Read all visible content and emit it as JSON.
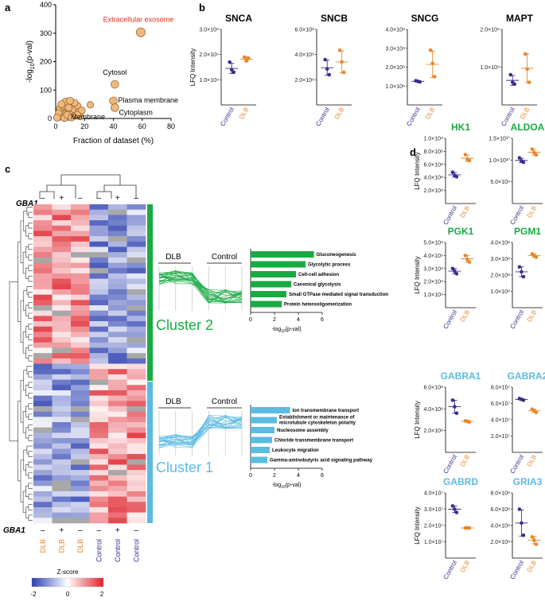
{
  "colors": {
    "control": "#3b2f8f",
    "dlb": "#e8872a",
    "green": "#1aaa43",
    "blue": "#5bbbe0",
    "red": "#e02b20",
    "bubble": "#f0b97a",
    "bubble_edge": "#8a5a2a"
  },
  "panel_labels": {
    "a": "a",
    "b": "b",
    "c": "c",
    "d": "d"
  },
  "axis": {
    "lfq": "LFQ Intensity",
    "control": "Control",
    "dlb": "DLB",
    "neglog_pre": "-log",
    "neglog_sub": "10",
    "neglog_post": "(p-val)"
  },
  "chart_data": [
    {
      "id": "a",
      "type": "scatter",
      "xlabel": "Fraction of dataset (%)",
      "ylabel": "-log10(p-val)",
      "xlim": [
        0,
        80
      ],
      "ylim": [
        0,
        400
      ],
      "xticks": [
        "0",
        "20",
        "40",
        "60",
        "80"
      ],
      "yticks": [
        "0",
        "100",
        "200",
        "300",
        "400"
      ],
      "labeled_points": [
        {
          "x": 59,
          "y": 303,
          "r": 8,
          "label": "Extracellular exosome",
          "highlight": true
        },
        {
          "x": 41,
          "y": 120,
          "r": 7,
          "label": "Cytosol"
        },
        {
          "x": 40,
          "y": 62,
          "r": 7,
          "label": "Plasma membrane"
        },
        {
          "x": 41,
          "y": 38,
          "r": 7,
          "label": "Cytoplasm"
        },
        {
          "x": 24,
          "y": 48,
          "r": 6,
          "label": "Membrane"
        }
      ],
      "cluster_points": [
        {
          "x": 2,
          "y": 5
        },
        {
          "x": 3,
          "y": 12
        },
        {
          "x": 4,
          "y": 22
        },
        {
          "x": 5,
          "y": 8
        },
        {
          "x": 6,
          "y": 30
        },
        {
          "x": 7,
          "y": 15
        },
        {
          "x": 8,
          "y": 40
        },
        {
          "x": 9,
          "y": 6
        },
        {
          "x": 10,
          "y": 25
        },
        {
          "x": 11,
          "y": 52
        },
        {
          "x": 12,
          "y": 18
        },
        {
          "x": 13,
          "y": 32
        },
        {
          "x": 14,
          "y": 10
        },
        {
          "x": 15,
          "y": 45
        },
        {
          "x": 16,
          "y": 22
        },
        {
          "x": 17,
          "y": 8
        },
        {
          "x": 18,
          "y": 28
        },
        {
          "x": 3,
          "y": 35
        },
        {
          "x": 5,
          "y": 45
        },
        {
          "x": 7,
          "y": 60
        },
        {
          "x": 9,
          "y": 38
        },
        {
          "x": 2,
          "y": 18
        },
        {
          "x": 1,
          "y": 3
        },
        {
          "x": 6,
          "y": 2
        },
        {
          "x": 8,
          "y": 12
        },
        {
          "x": 11,
          "y": 4
        },
        {
          "x": 13,
          "y": 55
        },
        {
          "x": 4,
          "y": 50
        },
        {
          "x": 10,
          "y": 62
        },
        {
          "x": 15,
          "y": 12
        }
      ]
    },
    {
      "id": "b-snca",
      "type": "scatter",
      "title": "SNCA",
      "yticks": [
        "1.0×10⁹",
        "2.0×10⁹",
        "3.0×10⁹"
      ],
      "ylim": [
        0,
        3
      ],
      "control": [
        1.7,
        1.4,
        1.3
      ],
      "dlb": [
        1.9,
        1.75,
        1.85
      ],
      "control_mean": 1.45,
      "control_sd": 0.2,
      "dlb_mean": 1.82,
      "dlb_sd": 0.1
    },
    {
      "id": "b-sncb",
      "type": "scatter",
      "title": "SNCB",
      "yticks": [
        "2.0×10⁸",
        "4.0×10⁸",
        "6.0×10⁸"
      ],
      "ylim": [
        0,
        6.5
      ],
      "control": [
        3.9,
        3.1,
        2.6
      ],
      "dlb": [
        4.7,
        3.7,
        2.8
      ],
      "control_mean": 3.2,
      "control_sd": 0.65,
      "dlb_mean": 3.7,
      "dlb_sd": 0.95
    },
    {
      "id": "b-sncg",
      "type": "scatter",
      "title": "SNCG",
      "yticks": [
        "1.0×10⁸",
        "2.0×10⁸",
        "3.0×10⁸",
        "4.0×10⁸"
      ],
      "ylim": [
        0,
        4
      ],
      "control": [
        1.28,
        1.25,
        1.22
      ],
      "dlb": [
        2.9,
        2.2,
        1.5
      ],
      "control_mean": 1.25,
      "control_sd": 0.03,
      "dlb_mean": 2.15,
      "dlb_sd": 0.7
    },
    {
      "id": "b-mapt",
      "type": "scatter",
      "title": "MAPT",
      "yticks": [
        "1.0×10⁹",
        "2.0×10⁹"
      ],
      "ylim": [
        0,
        2
      ],
      "control": [
        0.8,
        0.6,
        0.55
      ],
      "dlb": [
        1.35,
        0.95,
        0.6
      ],
      "control_mean": 0.65,
      "control_sd": 0.13,
      "dlb_mean": 0.97,
      "dlb_sd": 0.38
    },
    {
      "id": "d-hk1",
      "type": "scatter",
      "title": "HK1",
      "title_color": "green",
      "ylim": [
        0,
        10
      ],
      "yticks": [
        "2.0×10⁸",
        "4.0×10⁸",
        "6.0×10⁸",
        "8.0×10⁸",
        "1.0×10⁹"
      ],
      "control": [
        4.8,
        4.3,
        4.1
      ],
      "dlb": [
        7.5,
        6.8,
        6.6
      ],
      "control_mean": 4.4,
      "control_sd": 0.35,
      "dlb_mean": 6.95,
      "dlb_sd": 0.5
    },
    {
      "id": "d-aldoa",
      "type": "scatter",
      "title": "ALDOA",
      "title_color": "green",
      "ylim": [
        0,
        15
      ],
      "yticks": [
        "5.0×10⁹",
        "1.0×10¹⁰",
        "1.5×10¹⁰"
      ],
      "control": [
        10.5,
        9.8,
        9.5
      ],
      "dlb": [
        12.5,
        11.7,
        11.2
      ],
      "control_mean": 9.9,
      "control_sd": 0.5,
      "dlb_mean": 11.8,
      "dlb_sd": 0.65
    },
    {
      "id": "d-pgk1",
      "type": "scatter",
      "title": "PGK1",
      "title_color": "green",
      "ylim": [
        0,
        5
      ],
      "yticks": [
        "1.0×10⁹",
        "2.0×10⁹",
        "3.0×10⁹",
        "4.0×10⁹",
        "5.0×10⁹"
      ],
      "control": [
        3.0,
        2.8,
        2.6
      ],
      "dlb": [
        4.0,
        3.7,
        3.5
      ],
      "control_mean": 2.8,
      "control_sd": 0.2,
      "dlb_mean": 3.75,
      "dlb_sd": 0.25
    },
    {
      "id": "d-pgm1",
      "type": "scatter",
      "title": "PGM1",
      "title_color": "green",
      "ylim": [
        0,
        4
      ],
      "yticks": [
        "1.0×10⁸",
        "2.0×10⁸",
        "3.0×10⁸",
        "4.0×10⁸"
      ],
      "control": [
        2.5,
        2.2,
        1.9
      ],
      "dlb": [
        3.3,
        3.2,
        3.1
      ],
      "control_mean": 2.2,
      "control_sd": 0.3,
      "dlb_mean": 3.2,
      "dlb_sd": 0.1
    },
    {
      "id": "d-gabra1",
      "type": "scatter",
      "title": "GABRA1",
      "title_color": "blue",
      "ylim": [
        0,
        6
      ],
      "yticks": [
        "2.0×10⁸",
        "4.0×10⁸",
        "6.0×10⁸"
      ],
      "control": [
        4.8,
        4.2,
        3.6
      ],
      "dlb": [
        2.9,
        2.85,
        2.8
      ],
      "control_mean": 4.2,
      "control_sd": 0.6,
      "dlb_mean": 2.85,
      "dlb_sd": 0.05
    },
    {
      "id": "d-gabra2",
      "type": "scatter",
      "title": "GABRA2",
      "title_color": "blue",
      "ylim": [
        0,
        8
      ],
      "yticks": [
        "2.0×10⁷",
        "4.0×10⁷",
        "6.0×10⁷",
        "8.0×10⁷"
      ],
      "control": [
        6.6,
        6.5,
        6.4
      ],
      "dlb": [
        5.3,
        5.1,
        4.9
      ],
      "control_mean": 6.5,
      "control_sd": 0.1,
      "dlb_mean": 5.1,
      "dlb_sd": 0.2
    },
    {
      "id": "d-gabrd",
      "type": "scatter",
      "title": "GABRD",
      "title_color": "blue",
      "ylim": [
        0,
        4
      ],
      "yticks": [
        "1.0×10⁷",
        "2.0×10⁷",
        "3.0×10⁷",
        "4.0×10⁷"
      ],
      "control": [
        3.2,
        3.0,
        2.8
      ],
      "dlb": [
        1.85,
        1.85,
        1.85
      ],
      "control_mean": 3.0,
      "control_sd": 0.2,
      "dlb_mean": 1.85,
      "dlb_sd": 0.02
    },
    {
      "id": "d-gria3",
      "type": "scatter",
      "title": "GRIA3",
      "title_color": "blue",
      "ylim": [
        0,
        8
      ],
      "yticks": [
        "2.0×10⁸",
        "4.0×10⁸",
        "6.0×10⁸",
        "8.0×10⁸"
      ],
      "control": [
        6.0,
        4.3,
        2.8
      ],
      "dlb": [
        2.6,
        2.2,
        1.7
      ],
      "control_mean": 4.3,
      "control_sd": 1.6,
      "dlb_mean": 2.2,
      "dlb_sd": 0.45
    },
    {
      "id": "c-cluster2-go",
      "type": "bar",
      "title": "Cluster 2 GO terms",
      "xlabel": "-log10(p-val)",
      "xlim": [
        0,
        6
      ],
      "xticks": [
        "0",
        "2",
        "4",
        "6"
      ],
      "categories": [
        "Gluconeogenesis",
        "Glycolytic process",
        "Cell-cell adhesion",
        "Canonical glycolysis",
        "Small GTPase mediated signal transduction",
        "Protein heterooligomerization"
      ],
      "values": [
        5.3,
        4.6,
        3.8,
        3.4,
        3.0,
        2.6
      ]
    },
    {
      "id": "c-cluster1-go",
      "type": "bar",
      "title": "Cluster 1 GO terms",
      "xlabel": "-log10(p-val)",
      "xlim": [
        0,
        6
      ],
      "xticks": [
        "0",
        "2",
        "4",
        "6"
      ],
      "categories": [
        "Ion transmembrane transport",
        "Establishment or maintenance of microtubule cytoskeleton polarity",
        "Nucleosome assembly",
        "Chloride transmembrane transport",
        "Leukocyte migration",
        "Gamma-aminobutyric acid signaling pathway"
      ],
      "values": [
        3.3,
        2.2,
        2.0,
        1.8,
        1.6,
        1.4
      ]
    }
  ],
  "heatmap": {
    "gene_label": "GBA1",
    "gba1_marks": [
      "–",
      "+",
      "–",
      "–",
      "+",
      "–"
    ],
    "samples": [
      "DLB",
      "DLB",
      "DLB",
      "Control",
      "Control",
      "Control"
    ],
    "cluster2_label": "Cluster 2",
    "cluster1_label": "Cluster 1",
    "profile_dlb": "DLB",
    "profile_control": "Control",
    "zscore_title": "Z-score",
    "zscore_ticks": [
      "-2",
      "0",
      "2"
    ]
  }
}
